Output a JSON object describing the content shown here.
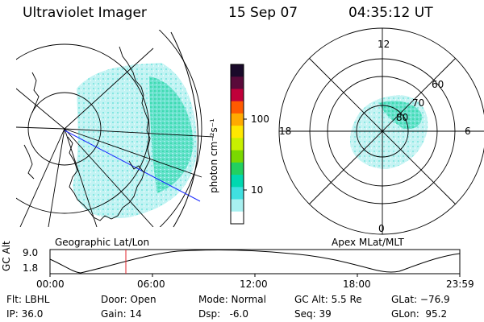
{
  "header": {
    "title": "Ultraviolet Imager",
    "date": "15 Sep 07",
    "time": "04:35:12 UT"
  },
  "colorbar": {
    "unit_label": "photon cm⁻²s⁻¹",
    "ticks": [
      "100",
      "10"
    ],
    "colors": [
      "#1a0a2a",
      "#5a0a3a",
      "#c0003a",
      "#ff5a00",
      "#ffaa00",
      "#ffe800",
      "#c8f000",
      "#7ad800",
      "#22d060",
      "#00d8b0",
      "#40e0e0",
      "#a8f0f0",
      "#ffffff"
    ]
  },
  "left_map": {
    "label": "Geographic Lat/Lon"
  },
  "right_map": {
    "label": "Apex MLat/MLT",
    "mlt_labels": [
      "12",
      "18",
      "6",
      "0"
    ],
    "mlat_labels": [
      "60",
      "70",
      "80"
    ]
  },
  "altitude_plot": {
    "ylabel": "GC Alt",
    "yticks": [
      "9.0",
      "1.8"
    ],
    "xticks": [
      "00:00",
      "06:00",
      "12:00",
      "18:00",
      "23:59"
    ]
  },
  "info": {
    "flt": "Flt: LBHL",
    "ip": "IP: 36.0",
    "door": "Door: Open",
    "gain": "Gain: 14",
    "mode": "Mode: Normal",
    "dsp": "Dsp:   -6.0",
    "gcalt": "GC Alt: 5.5 Re",
    "seq": "Seq: 39",
    "glat": "GLat: −76.9",
    "glon": "GLon:  95.2"
  }
}
